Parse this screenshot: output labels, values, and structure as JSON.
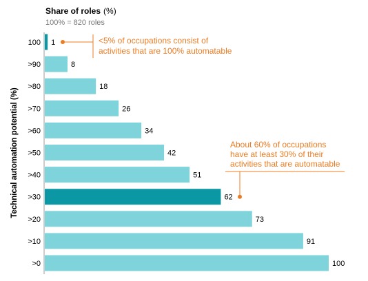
{
  "chart_data": {
    "type": "bar",
    "orientation": "horizontal",
    "title": "Share of roles",
    "title_unit": "(%)",
    "subtitle": "100% = 820 roles",
    "ylabel": "Technical automation potential (%)",
    "xlim": [
      0,
      100
    ],
    "categories": [
      "100",
      ">90",
      ">80",
      ">70",
      ">60",
      ">50",
      ">40",
      ">30",
      ">20",
      ">10",
      ">0"
    ],
    "values": [
      1,
      8,
      18,
      26,
      34,
      42,
      51,
      62,
      73,
      91,
      100
    ],
    "value_labels": [
      "1",
      "8",
      "18",
      "26",
      "34",
      "42",
      "51",
      "62",
      "73",
      "91",
      "100"
    ],
    "highlighted_categories": [
      "100",
      ">30"
    ],
    "grid": false,
    "annotations": [
      {
        "target_category": "100",
        "lines": [
          "<5% of occupations consist of",
          "activities that are 100% automatable"
        ]
      },
      {
        "target_category": ">30",
        "lines": [
          "About 60% of occupations",
          "have at least 30% of their",
          "activities that are automatable"
        ]
      }
    ]
  },
  "colors": {
    "bar": "#7fd4dc",
    "bar_highlight": "#0b97a3",
    "annotation": "#ec7c23",
    "axis_line": "#999999",
    "subtitle": "#777777",
    "text": "#000000"
  }
}
